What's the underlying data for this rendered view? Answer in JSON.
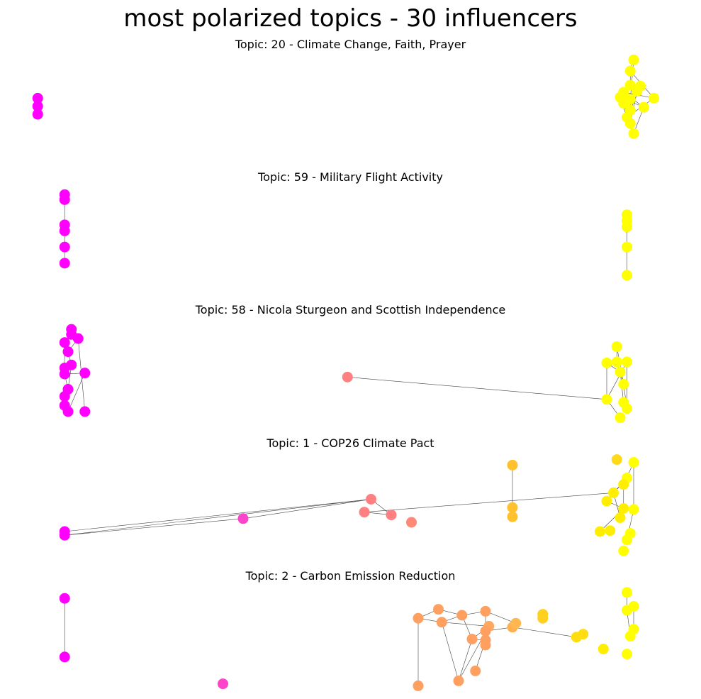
{
  "figure": {
    "title": "most polarized topics - 30 influencers"
  },
  "chart_data": [
    {
      "type": "network",
      "title": "Topic: 20 - Climate Change, Faith, Prayer",
      "xlim": [
        0,
        10
      ],
      "ylim": [
        0,
        10
      ],
      "nodes": [
        {
          "id": 0,
          "x": 0.35,
          "y": 6.1,
          "color": "#ff00ff"
        },
        {
          "id": 1,
          "x": 0.35,
          "y": 5.3,
          "color": "#ff00ff"
        },
        {
          "id": 2,
          "x": 0.35,
          "y": 4.5,
          "color": "#ff00ff"
        },
        {
          "id": 3,
          "x": 9.2,
          "y": 9.9,
          "color": "#ffff00"
        },
        {
          "id": 4,
          "x": 9.15,
          "y": 8.8,
          "color": "#ffff00"
        },
        {
          "id": 5,
          "x": 9.15,
          "y": 7.4,
          "color": "#ffff00"
        },
        {
          "id": 6,
          "x": 9.3,
          "y": 7.3,
          "color": "#ffff00"
        },
        {
          "id": 7,
          "x": 9.05,
          "y": 6.7,
          "color": "#ffff00"
        },
        {
          "id": 8,
          "x": 9.25,
          "y": 6.8,
          "color": "#ffff00"
        },
        {
          "id": 9,
          "x": 9.0,
          "y": 6.2,
          "color": "#ffff00"
        },
        {
          "id": 10,
          "x": 9.15,
          "y": 6.0,
          "color": "#ffff00"
        },
        {
          "id": 11,
          "x": 9.5,
          "y": 6.1,
          "color": "#ffff00"
        },
        {
          "id": 12,
          "x": 9.05,
          "y": 5.6,
          "color": "#ffff00"
        },
        {
          "id": 13,
          "x": 9.35,
          "y": 5.2,
          "color": "#ffff00"
        },
        {
          "id": 14,
          "x": 9.15,
          "y": 4.9,
          "color": "#ffff00"
        },
        {
          "id": 15,
          "x": 9.1,
          "y": 4.2,
          "color": "#ffff00"
        },
        {
          "id": 16,
          "x": 9.15,
          "y": 3.6,
          "color": "#ffff00"
        },
        {
          "id": 17,
          "x": 9.2,
          "y": 2.6,
          "color": "#ffff00"
        }
      ],
      "edges": [
        [
          3,
          4
        ],
        [
          4,
          5
        ],
        [
          5,
          7
        ],
        [
          5,
          9
        ],
        [
          6,
          10
        ],
        [
          7,
          11
        ],
        [
          8,
          12
        ],
        [
          9,
          13
        ],
        [
          10,
          14
        ],
        [
          11,
          15
        ],
        [
          12,
          16
        ],
        [
          13,
          17
        ],
        [
          3,
          10
        ],
        [
          6,
          14
        ],
        [
          8,
          16
        ],
        [
          15,
          17
        ],
        [
          4,
          11
        ],
        [
          7,
          13
        ],
        [
          9,
          15
        ]
      ]
    },
    {
      "type": "network",
      "title": "Topic: 59 - Military Flight Activity",
      "xlim": [
        0,
        10
      ],
      "ylim": [
        0,
        10
      ],
      "nodes": [
        {
          "id": 0,
          "x": 0.75,
          "y": 9.7,
          "color": "#ff00ff"
        },
        {
          "id": 1,
          "x": 0.75,
          "y": 9.2,
          "color": "#ff00ff"
        },
        {
          "id": 2,
          "x": 0.75,
          "y": 6.7,
          "color": "#ff00ff"
        },
        {
          "id": 3,
          "x": 0.75,
          "y": 6.1,
          "color": "#ff00ff"
        },
        {
          "id": 4,
          "x": 0.75,
          "y": 4.5,
          "color": "#ff00ff"
        },
        {
          "id": 5,
          "x": 0.75,
          "y": 2.9,
          "color": "#ff00ff"
        },
        {
          "id": 6,
          "x": 9.1,
          "y": 7.7,
          "color": "#ffff00"
        },
        {
          "id": 7,
          "x": 9.1,
          "y": 7.1,
          "color": "#ffff00"
        },
        {
          "id": 8,
          "x": 9.1,
          "y": 6.5,
          "color": "#ffff00"
        },
        {
          "id": 9,
          "x": 9.1,
          "y": 4.5,
          "color": "#ffff00"
        },
        {
          "id": 10,
          "x": 9.1,
          "y": 1.7,
          "color": "#ffff00"
        }
      ],
      "edges": [
        [
          0,
          1
        ],
        [
          1,
          2
        ],
        [
          2,
          3
        ],
        [
          3,
          4
        ],
        [
          4,
          5
        ],
        [
          6,
          7
        ],
        [
          7,
          8
        ],
        [
          8,
          9
        ],
        [
          9,
          10
        ]
      ]
    },
    {
      "type": "network",
      "title": "Topic: 58 - Nicola Sturgeon and Scottish Independence",
      "xlim": [
        0,
        10
      ],
      "ylim": [
        0,
        10
      ],
      "nodes": [
        {
          "id": 0,
          "x": 0.85,
          "y": 9.5,
          "color": "#ff00ff"
        },
        {
          "id": 1,
          "x": 0.85,
          "y": 9.0,
          "color": "#ff00ff"
        },
        {
          "id": 2,
          "x": 0.95,
          "y": 8.6,
          "color": "#ff00ff"
        },
        {
          "id": 3,
          "x": 0.75,
          "y": 8.2,
          "color": "#ff00ff"
        },
        {
          "id": 4,
          "x": 0.8,
          "y": 7.3,
          "color": "#ff00ff"
        },
        {
          "id": 5,
          "x": 0.85,
          "y": 6.0,
          "color": "#ff00ff"
        },
        {
          "id": 6,
          "x": 0.75,
          "y": 5.7,
          "color": "#ff00ff"
        },
        {
          "id": 7,
          "x": 1.05,
          "y": 5.2,
          "color": "#ff00ff"
        },
        {
          "id": 8,
          "x": 0.75,
          "y": 5.1,
          "color": "#ff00ff"
        },
        {
          "id": 9,
          "x": 0.8,
          "y": 3.6,
          "color": "#ff00ff"
        },
        {
          "id": 10,
          "x": 0.75,
          "y": 2.9,
          "color": "#ff00ff"
        },
        {
          "id": 11,
          "x": 0.75,
          "y": 2.0,
          "color": "#ff00ff"
        },
        {
          "id": 12,
          "x": 0.8,
          "y": 1.4,
          "color": "#ff00ff"
        },
        {
          "id": 13,
          "x": 1.05,
          "y": 1.4,
          "color": "#ff00ff"
        },
        {
          "id": 14,
          "x": 4.95,
          "y": 4.8,
          "color": "#ff8080"
        },
        {
          "id": 15,
          "x": 8.95,
          "y": 7.8,
          "color": "#ffff00"
        },
        {
          "id": 16,
          "x": 8.8,
          "y": 6.2,
          "color": "#ffff00"
        },
        {
          "id": 17,
          "x": 8.95,
          "y": 6.3,
          "color": "#ffff00"
        },
        {
          "id": 18,
          "x": 9.1,
          "y": 6.3,
          "color": "#ffff00"
        },
        {
          "id": 19,
          "x": 9.0,
          "y": 5.3,
          "color": "#ffff00"
        },
        {
          "id": 20,
          "x": 9.05,
          "y": 4.1,
          "color": "#ffff00"
        },
        {
          "id": 21,
          "x": 8.8,
          "y": 2.6,
          "color": "#ffff00"
        },
        {
          "id": 22,
          "x": 9.05,
          "y": 2.3,
          "color": "#ffff00"
        },
        {
          "id": 23,
          "x": 9.1,
          "y": 1.7,
          "color": "#ffff00"
        },
        {
          "id": 24,
          "x": 9.0,
          "y": 0.8,
          "color": "#ffff00"
        }
      ],
      "edges": [
        [
          0,
          1
        ],
        [
          1,
          2
        ],
        [
          2,
          4
        ],
        [
          3,
          4
        ],
        [
          4,
          5
        ],
        [
          5,
          6
        ],
        [
          6,
          8
        ],
        [
          7,
          8
        ],
        [
          8,
          9
        ],
        [
          9,
          10
        ],
        [
          10,
          11
        ],
        [
          11,
          12
        ],
        [
          2,
          13
        ],
        [
          7,
          12
        ],
        [
          5,
          9
        ],
        [
          3,
          6
        ],
        [
          14,
          21
        ],
        [
          15,
          17
        ],
        [
          16,
          19
        ],
        [
          17,
          20
        ],
        [
          18,
          21
        ],
        [
          19,
          22
        ],
        [
          20,
          23
        ],
        [
          21,
          24
        ],
        [
          16,
          21
        ],
        [
          18,
          23
        ],
        [
          15,
          20
        ]
      ]
    },
    {
      "type": "network",
      "title": "Topic: 1 - COP26 Climate Pact",
      "xlim": [
        0,
        10
      ],
      "ylim": [
        0,
        10
      ],
      "nodes": [
        {
          "id": 0,
          "x": 0.75,
          "y": 2.0,
          "color": "#ff00ff"
        },
        {
          "id": 1,
          "x": 0.75,
          "y": 1.6,
          "color": "#ff00ff"
        },
        {
          "id": 2,
          "x": 3.4,
          "y": 3.4,
          "color": "#ff44cc"
        },
        {
          "id": 3,
          "x": 5.3,
          "y": 5.5,
          "color": "#ff8080"
        },
        {
          "id": 4,
          "x": 5.2,
          "y": 4.1,
          "color": "#ff8080"
        },
        {
          "id": 5,
          "x": 5.6,
          "y": 3.8,
          "color": "#ff8080"
        },
        {
          "id": 6,
          "x": 5.9,
          "y": 3.0,
          "color": "#ff8877"
        },
        {
          "id": 7,
          "x": 7.4,
          "y": 9.2,
          "color": "#ffc12e"
        },
        {
          "id": 8,
          "x": 7.4,
          "y": 4.6,
          "color": "#ffc12e"
        },
        {
          "id": 9,
          "x": 7.4,
          "y": 3.6,
          "color": "#ffc12e"
        },
        {
          "id": 10,
          "x": 8.95,
          "y": 9.8,
          "color": "#ffd91a"
        },
        {
          "id": 11,
          "x": 9.2,
          "y": 9.5,
          "color": "#ffff00"
        },
        {
          "id": 12,
          "x": 9.1,
          "y": 7.8,
          "color": "#ffff00"
        },
        {
          "id": 13,
          "x": 9.05,
          "y": 7.1,
          "color": "#ffee00"
        },
        {
          "id": 14,
          "x": 8.9,
          "y": 6.2,
          "color": "#ffee00"
        },
        {
          "id": 15,
          "x": 8.8,
          "y": 5.3,
          "color": "#ffee00"
        },
        {
          "id": 16,
          "x": 9.05,
          "y": 4.5,
          "color": "#ffee00"
        },
        {
          "id": 17,
          "x": 9.2,
          "y": 4.4,
          "color": "#ffff00"
        },
        {
          "id": 18,
          "x": 9.0,
          "y": 3.5,
          "color": "#ffee00"
        },
        {
          "id": 19,
          "x": 8.7,
          "y": 2.0,
          "color": "#ffee00"
        },
        {
          "id": 20,
          "x": 8.85,
          "y": 2.1,
          "color": "#ffee00"
        },
        {
          "id": 21,
          "x": 9.15,
          "y": 1.8,
          "color": "#ffff00"
        },
        {
          "id": 22,
          "x": 9.1,
          "y": 1.1,
          "color": "#ffff00"
        },
        {
          "id": 23,
          "x": 9.05,
          "y": -0.1,
          "color": "#ffff00"
        }
      ],
      "edges": [
        [
          0,
          3
        ],
        [
          1,
          3
        ],
        [
          2,
          3
        ],
        [
          1,
          2
        ],
        [
          3,
          5
        ],
        [
          4,
          5
        ],
        [
          4,
          14
        ],
        [
          7,
          8
        ],
        [
          8,
          9
        ],
        [
          11,
          17
        ],
        [
          12,
          14
        ],
        [
          13,
          16
        ],
        [
          14,
          18
        ],
        [
          15,
          16
        ],
        [
          16,
          19
        ],
        [
          17,
          22
        ],
        [
          11,
          13
        ],
        [
          12,
          15
        ]
      ]
    },
    {
      "type": "network",
      "title": "Topic: 2 - Carbon Emission Reduction",
      "xlim": [
        0,
        10
      ],
      "ylim": [
        0,
        10
      ],
      "nodes": [
        {
          "id": 0,
          "x": 0.75,
          "y": 9.2,
          "color": "#ff00ff"
        },
        {
          "id": 1,
          "x": 0.75,
          "y": 3.3,
          "color": "#ff00ff"
        },
        {
          "id": 2,
          "x": 3.1,
          "y": 0.6,
          "color": "#ff44cc"
        },
        {
          "id": 3,
          "x": 6.3,
          "y": 8.1,
          "color": "#ffa060"
        },
        {
          "id": 4,
          "x": 6.65,
          "y": 7.5,
          "color": "#ffa060"
        },
        {
          "id": 5,
          "x": 7.0,
          "y": 7.9,
          "color": "#ffa060"
        },
        {
          "id": 6,
          "x": 6.0,
          "y": 7.2,
          "color": "#ffa060"
        },
        {
          "id": 7,
          "x": 6.35,
          "y": 6.8,
          "color": "#ffa060"
        },
        {
          "id": 8,
          "x": 7.05,
          "y": 6.4,
          "color": "#ffa860"
        },
        {
          "id": 9,
          "x": 7.4,
          "y": 6.3,
          "color": "#ffb050"
        },
        {
          "id": 10,
          "x": 7.45,
          "y": 6.7,
          "color": "#ffb850"
        },
        {
          "id": 11,
          "x": 7.0,
          "y": 5.9,
          "color": "#ffa060"
        },
        {
          "id": 12,
          "x": 6.8,
          "y": 5.1,
          "color": "#ffa060"
        },
        {
          "id": 13,
          "x": 7.0,
          "y": 5.0,
          "color": "#ffa060"
        },
        {
          "id": 14,
          "x": 7.0,
          "y": 4.5,
          "color": "#ffa060"
        },
        {
          "id": 15,
          "x": 6.85,
          "y": 1.9,
          "color": "#ffa060"
        },
        {
          "id": 16,
          "x": 6.6,
          "y": 0.9,
          "color": "#ffa060"
        },
        {
          "id": 17,
          "x": 6.0,
          "y": 0.4,
          "color": "#ffa060"
        },
        {
          "id": 18,
          "x": 7.85,
          "y": 7.6,
          "color": "#ffd020"
        },
        {
          "id": 19,
          "x": 7.85,
          "y": 7.2,
          "color": "#ffd020"
        },
        {
          "id": 20,
          "x": 8.45,
          "y": 5.6,
          "color": "#ffdd10"
        },
        {
          "id": 21,
          "x": 8.35,
          "y": 5.3,
          "color": "#ffdd10"
        },
        {
          "id": 22,
          "x": 8.75,
          "y": 4.1,
          "color": "#ffee00"
        },
        {
          "id": 23,
          "x": 9.1,
          "y": 3.6,
          "color": "#ffff00"
        },
        {
          "id": 24,
          "x": 9.1,
          "y": 9.8,
          "color": "#ffff00"
        },
        {
          "id": 25,
          "x": 9.2,
          "y": 8.4,
          "color": "#ffff00"
        },
        {
          "id": 26,
          "x": 9.1,
          "y": 8.0,
          "color": "#ffff00"
        },
        {
          "id": 27,
          "x": 9.2,
          "y": 6.1,
          "color": "#ffff00"
        },
        {
          "id": 28,
          "x": 9.15,
          "y": 5.4,
          "color": "#ffff00"
        }
      ],
      "edges": [
        [
          0,
          1
        ],
        [
          3,
          4
        ],
        [
          4,
          5
        ],
        [
          3,
          6
        ],
        [
          6,
          7
        ],
        [
          7,
          8
        ],
        [
          4,
          12
        ],
        [
          5,
          11
        ],
        [
          5,
          10
        ],
        [
          8,
          12
        ],
        [
          9,
          11
        ],
        [
          11,
          14
        ],
        [
          12,
          13
        ],
        [
          13,
          14
        ],
        [
          9,
          21
        ],
        [
          6,
          17
        ],
        [
          7,
          16
        ],
        [
          12,
          16
        ],
        [
          13,
          15
        ],
        [
          8,
          16
        ],
        [
          24,
          26
        ],
        [
          25,
          27
        ],
        [
          26,
          28
        ],
        [
          4,
          7
        ],
        [
          9,
          10
        ]
      ]
    }
  ]
}
